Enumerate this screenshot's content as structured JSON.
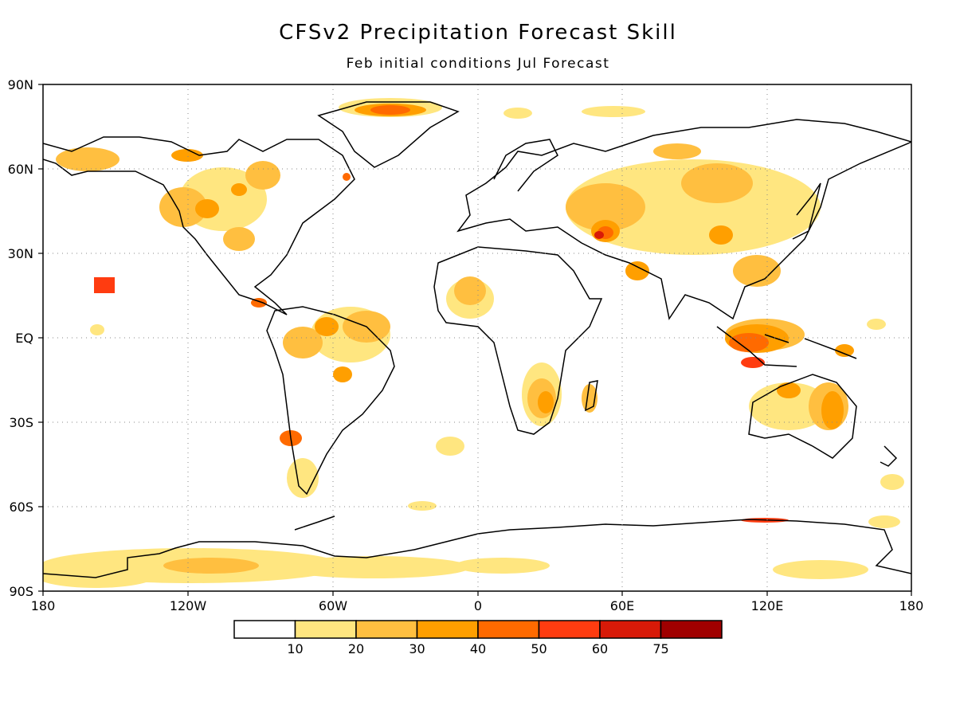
{
  "title": "CFSv2 Precipitation Forecast Skill",
  "subtitle": "Feb initial conditions  Jul Forecast",
  "axes": {
    "lat_labels": [
      "90N",
      "60N",
      "30N",
      "EQ",
      "30S",
      "60S",
      "90S"
    ],
    "lon_labels": [
      "180",
      "120W",
      "60W",
      "0",
      "60E",
      "120E",
      "180"
    ]
  },
  "colorbar": {
    "labels": [
      "10",
      "20",
      "30",
      "40",
      "50",
      "60",
      "75"
    ],
    "colors": [
      "#ffffff",
      "#ffe680",
      "#ffbf40",
      "#ff9f00",
      "#ff6a00",
      "#ff3c10",
      "#d81a08",
      "#a00000"
    ]
  }
}
